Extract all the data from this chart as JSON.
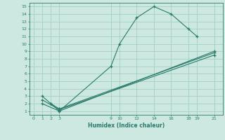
{
  "xlabel": "Humidex (Indice chaleur)",
  "bg_color": "#cce8e0",
  "grid_color": "#99ccbb",
  "line_color": "#2a7a6a",
  "line1_x": [
    1,
    2,
    3,
    9,
    10,
    12,
    14,
    16,
    18,
    19
  ],
  "line1_y": [
    3,
    2,
    1,
    7,
    10,
    13.5,
    15,
    14,
    12,
    11
  ],
  "line2_x": [
    1,
    3,
    21
  ],
  "line2_y": [
    2,
    1,
    9.0
  ],
  "line3_x": [
    1,
    3,
    21
  ],
  "line3_y": [
    2.5,
    1.2,
    8.5
  ],
  "line4_x": [
    2,
    3,
    21
  ],
  "line4_y": [
    2,
    1.3,
    8.8
  ],
  "xlim": [
    -0.5,
    22
  ],
  "ylim": [
    0.5,
    15.5
  ],
  "xticks": [
    0,
    1,
    2,
    3,
    9,
    10,
    12,
    14,
    16,
    18,
    19,
    21
  ],
  "yticks": [
    1,
    2,
    3,
    4,
    5,
    6,
    7,
    8,
    9,
    10,
    11,
    12,
    13,
    14,
    15
  ]
}
